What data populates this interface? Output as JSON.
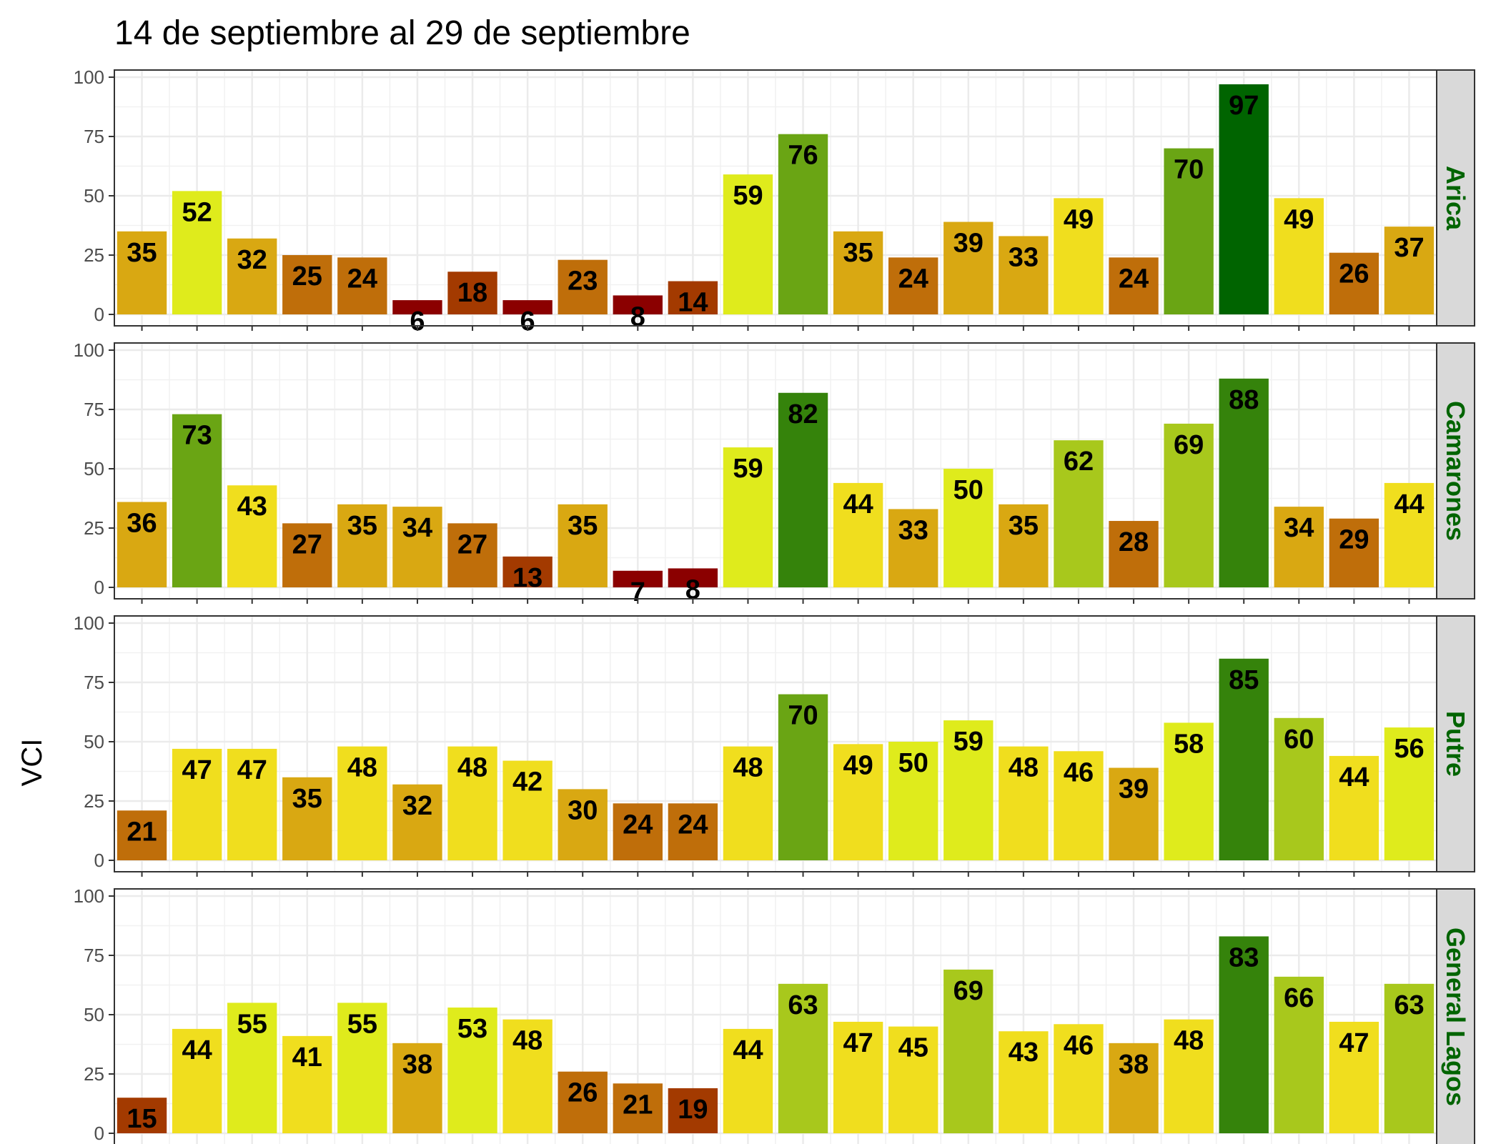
{
  "chart_data": {
    "type": "bar",
    "title": "14 de septiembre al 29 de septiembre",
    "ylabel": "VCI",
    "xlabel": "",
    "ylim": [
      0,
      100
    ],
    "yticks": [
      "0",
      "25",
      "50",
      "75",
      "100"
    ],
    "n_bars": 24,
    "strip_color": "#006400",
    "colors": {
      "very_low": "#8b0000",
      "low": "#a33a00",
      "mid_low": "#bf6e0a",
      "mid": "#d9a812",
      "mid_high": "#f0de1e",
      "high_yellow": "#dfeb1c",
      "light_green": "#a8c81c",
      "green": "#6aa514",
      "dark_green": "#35830b",
      "darkest_green": "#006400"
    },
    "panels": [
      {
        "name": "Arica",
        "values": [
          35,
          52,
          32,
          25,
          24,
          6,
          18,
          6,
          23,
          8,
          14,
          59,
          76,
          35,
          24,
          39,
          33,
          49,
          24,
          70,
          97,
          49,
          26,
          37
        ]
      },
      {
        "name": "Camarones",
        "values": [
          36,
          73,
          43,
          27,
          35,
          34,
          27,
          13,
          35,
          7,
          8,
          59,
          82,
          44,
          33,
          50,
          35,
          62,
          28,
          69,
          88,
          34,
          29,
          44
        ]
      },
      {
        "name": "Putre",
        "values": [
          21,
          47,
          47,
          35,
          48,
          32,
          48,
          42,
          30,
          24,
          24,
          48,
          70,
          49,
          50,
          59,
          48,
          46,
          39,
          58,
          85,
          60,
          44,
          56
        ]
      },
      {
        "name": "General Lagos",
        "values": [
          15,
          44,
          55,
          41,
          55,
          38,
          53,
          48,
          26,
          21,
          19,
          44,
          63,
          47,
          45,
          69,
          43,
          46,
          38,
          48,
          83,
          66,
          47,
          63
        ]
      }
    ]
  }
}
